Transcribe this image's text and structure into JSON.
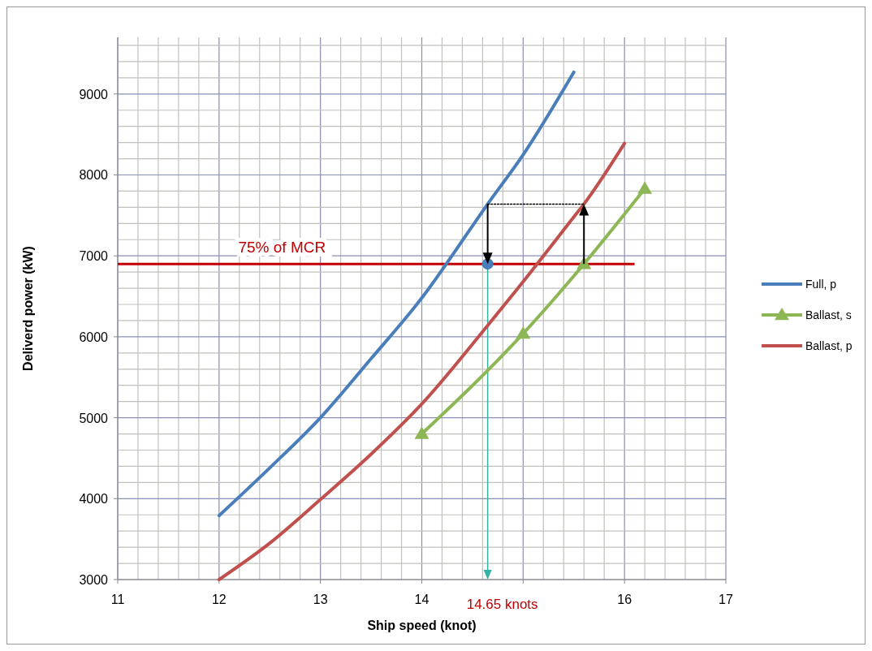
{
  "chart_data": {
    "type": "line",
    "xlabel": "Ship speed (knot)",
    "ylabel": "Deliverd power (kW)",
    "xlim": [
      11,
      17
    ],
    "xticks": [
      11,
      12,
      13,
      14,
      {
        "value": 15,
        "label": null
      },
      16,
      17
    ],
    "ylim": [
      3000,
      9700
    ],
    "yticks": [
      3000,
      4000,
      5000,
      6000,
      7000,
      8000,
      9000
    ],
    "grid": true,
    "legend": "right",
    "line_style": "solid",
    "series": [
      {
        "name": "Full, p",
        "color": "#4a7ebb",
        "marker": "none",
        "x": [
          12,
          12.5,
          13,
          13.5,
          14,
          14.5,
          14.65,
          15,
          15.5
        ],
        "values": [
          3790,
          4380,
          5000,
          5730,
          6480,
          7370,
          7640,
          8250,
          9270
        ]
      },
      {
        "name": "Ballast, s",
        "color": "#8db655",
        "marker": "triangle",
        "x": [
          14,
          15,
          15.6,
          16.2
        ],
        "values": [
          4800,
          6040,
          6900,
          7830
        ]
      },
      {
        "name": "Ballast, p",
        "color": "#c0504d",
        "marker": "none",
        "x": [
          12,
          12.5,
          13,
          13.5,
          14,
          14.65,
          15,
          15.5,
          15.6,
          16
        ],
        "values": [
          3000,
          3450,
          3990,
          4550,
          5170,
          6140,
          6680,
          7480,
          7640,
          8390
        ]
      },
      {
        "type": "line",
        "color": "#000000",
        "line_style": "dotted",
        "marker": "none",
        "x": [
          14.65,
          15.6
        ],
        "values": [
          7640,
          7640
        ]
      },
      {
        "type": "scatter",
        "color": "#4a7ebb",
        "marker": "circle",
        "x": [
          14.65
        ],
        "values": [
          6900
        ]
      }
    ],
    "ref_lines": [
      {
        "axis": "y",
        "value": 6900,
        "label": "75% of MCR",
        "color": "#c00000"
      },
      {
        "axis": "x",
        "value": 14.65,
        "label": "14.65 knots",
        "color": "#33b3a6"
      }
    ]
  }
}
